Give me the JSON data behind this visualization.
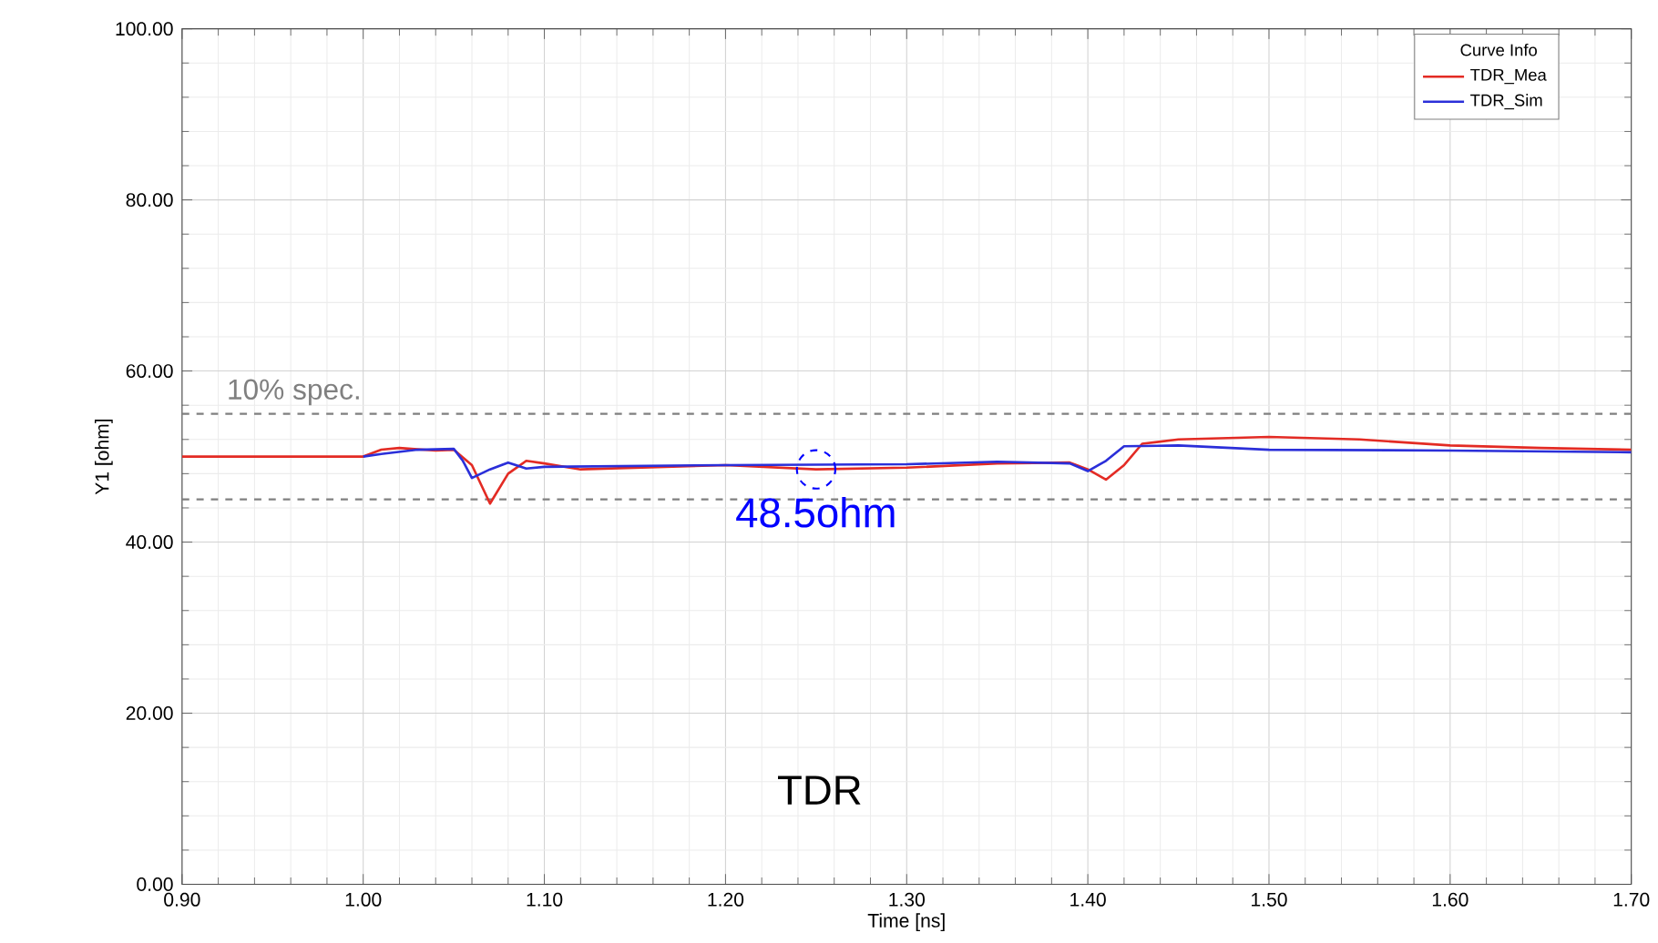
{
  "chart_data": {
    "type": "line",
    "xlabel": "Time [ns]",
    "ylabel": "Y1 [ohm]",
    "legend_title": "Curve Info",
    "xlim": [
      0.9,
      1.7
    ],
    "ylim": [
      0,
      100
    ],
    "xticks": [
      {
        "value": 0.9,
        "label": "0.90"
      },
      {
        "value": 1.0,
        "label": "1.00"
      },
      {
        "value": 1.1,
        "label": "1.10"
      },
      {
        "value": 1.2,
        "label": "1.20"
      },
      {
        "value": 1.3,
        "label": "1.30"
      },
      {
        "value": 1.4,
        "label": "1.40"
      },
      {
        "value": 1.5,
        "label": "1.50"
      },
      {
        "value": 1.6,
        "label": "1.60"
      },
      {
        "value": 1.7,
        "label": "1.70"
      }
    ],
    "yticks": [
      {
        "value": 0,
        "label": "0.00"
      },
      {
        "value": 20,
        "label": "20.00"
      },
      {
        "value": 40,
        "label": "40.00"
      },
      {
        "value": 60,
        "label": "60.00"
      },
      {
        "value": 80,
        "label": "80.00"
      },
      {
        "value": 100,
        "label": "100.00"
      }
    ],
    "grid": true,
    "legend": "top right",
    "marker": "none",
    "line_style": "solid",
    "series": [
      {
        "name": "TDR_Mea",
        "color": "#e32b24",
        "x": [
          0.9,
          1.0,
          1.01,
          1.02,
          1.04,
          1.05,
          1.06,
          1.07,
          1.08,
          1.09,
          1.1,
          1.12,
          1.2,
          1.25,
          1.3,
          1.35,
          1.39,
          1.4,
          1.41,
          1.42,
          1.43,
          1.45,
          1.5,
          1.55,
          1.6,
          1.65,
          1.7
        ],
        "values": [
          50,
          50,
          50.8,
          51,
          50.7,
          50.8,
          49,
          44.5,
          48,
          49.5,
          49.2,
          48.5,
          49,
          48.5,
          48.7,
          49.2,
          49.3,
          48.5,
          47.3,
          49,
          51.5,
          52,
          52.3,
          52,
          51.3,
          51,
          50.8
        ]
      },
      {
        "name": "TDR_Sim",
        "color": "#2b2fd9",
        "x": [
          1.0,
          1.01,
          1.03,
          1.05,
          1.055,
          1.06,
          1.07,
          1.08,
          1.09,
          1.1,
          1.2,
          1.3,
          1.35,
          1.39,
          1.4,
          1.41,
          1.42,
          1.45,
          1.5,
          1.6,
          1.7
        ],
        "values": [
          50,
          50.3,
          50.8,
          50.9,
          49.5,
          47.5,
          48.5,
          49.3,
          48.6,
          48.8,
          49,
          49.1,
          49.4,
          49.2,
          48.3,
          49.5,
          51.2,
          51.3,
          50.8,
          50.7,
          50.5
        ]
      }
    ],
    "ref_lines": [
      {
        "axis": "y",
        "value": 55,
        "label": "10% spec.",
        "color": "#808080",
        "line_style": "dashed"
      },
      {
        "axis": "y",
        "value": 45,
        "color": "#808080",
        "line_style": "dashed"
      }
    ],
    "annotations": [
      {
        "text": "48.5ohm",
        "x": 1.25,
        "y": 48.5
      },
      "TDR"
    ]
  }
}
